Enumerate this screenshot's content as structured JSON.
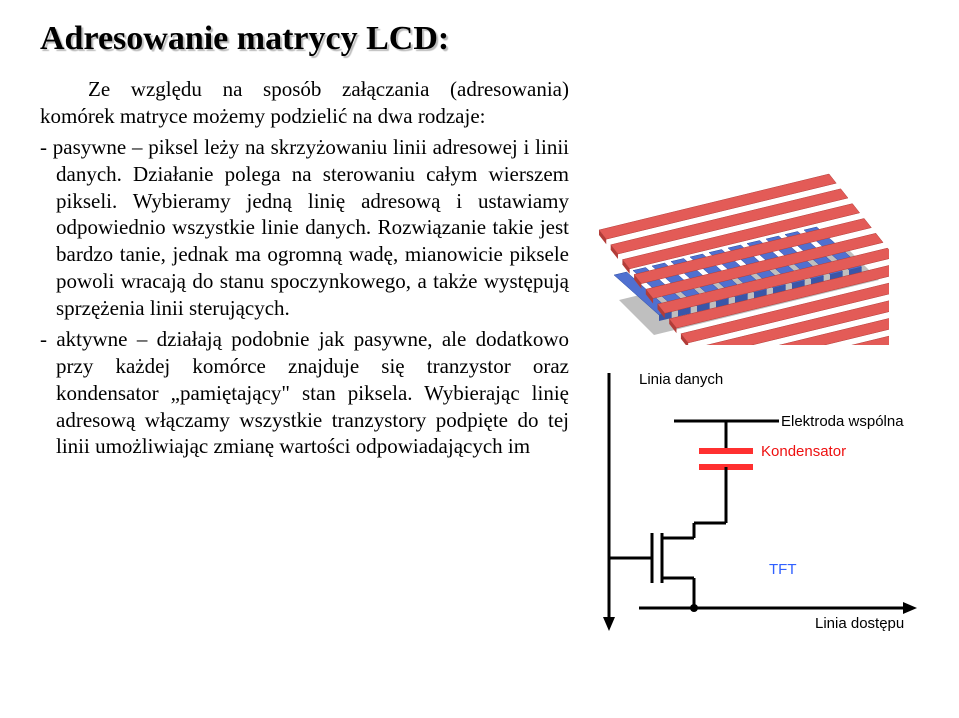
{
  "title": "Adresowanie matrycy LCD:",
  "intro": "Ze względu na sposób załączania (adresowania) komórek matryce możemy podzielić na dwa rodzaje:",
  "item_passive": "- pasywne – piksel leży na skrzyżowaniu linii adresowej i linii danych. Działanie polega na sterowaniu całym wierszem pikseli. Wybieramy jedną linię adresową i ustawiamy odpowiednio wszystkie linie danych. Rozwiązanie takie jest bardzo tanie, jednak ma ogromną wadę, mianowicie piksele powoli wracają do stanu spoczynkowego, a także występują sprzężenia linii sterujących.",
  "item_active": "- aktywne – działają podobnie jak pasywne, ale dodatkowo przy każdej komórce znajduje się tranzystor oraz kondensator „pamiętający\" stan piksela. Wybierając linię adresową włączamy wszystkie tranzystory podpięte do tej linii umożliwiając zmianę wartości odpowiadających im",
  "diagram": {
    "matrix": {
      "top_plane_color": "#e35b57",
      "bottom_plane_color": "#5070d0",
      "shadow_color": "#808080",
      "bar_count": 11
    },
    "schematic_labels": {
      "linia_danych": "Linia danych",
      "elektroda_wspolna": "Elektroda wspólna",
      "kondensator": "Kondensator",
      "tft": "TFT",
      "linia_dostepu": "Linia dostępu"
    },
    "schematic_colors": {
      "wire": "#000000",
      "cap": "#ff3030",
      "label_red": "#e11111"
    }
  }
}
